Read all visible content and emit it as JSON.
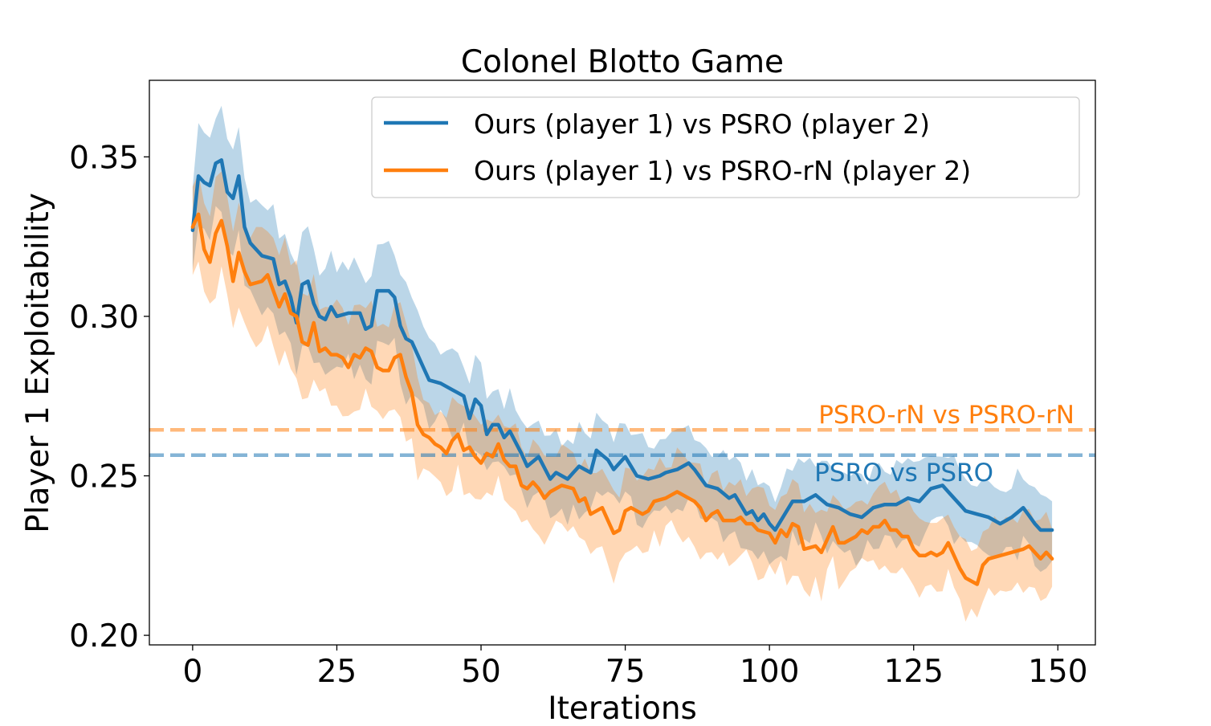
{
  "chart_data": {
    "type": "line",
    "title": "Colonel Blotto Game",
    "xlabel": "Iterations",
    "ylabel": "Player 1 Exploitability",
    "xlim": [
      -7.5,
      156.5
    ],
    "ylim": [
      0.197,
      0.374
    ],
    "x_ticks": [
      0,
      25,
      50,
      75,
      100,
      125,
      150
    ],
    "y_ticks": [
      0.2,
      0.25,
      0.3,
      0.35
    ],
    "x_tick_labels": [
      "0",
      "25",
      "50",
      "75",
      "100",
      "125",
      "150"
    ],
    "y_tick_labels": [
      "0.20",
      "0.25",
      "0.30",
      "0.35"
    ],
    "grid": false,
    "legend": {
      "placement": "upper-right",
      "entries": [
        "Ours (player 1) vs PSRO (player 2)",
        "Ours (player 1) vs PSRO-rN (player 2)"
      ]
    },
    "series": [
      {
        "name": "Ours (player 1) vs PSRO (player 2)",
        "color": "#1f77b4",
        "keypoints": [
          [
            0,
            0.327
          ],
          [
            1,
            0.344
          ],
          [
            2,
            0.342
          ],
          [
            3,
            0.341
          ],
          [
            4,
            0.348
          ],
          [
            5,
            0.349
          ],
          [
            6,
            0.339
          ],
          [
            7,
            0.337
          ],
          [
            8,
            0.344
          ],
          [
            9,
            0.328
          ],
          [
            10,
            0.323
          ],
          [
            12,
            0.319
          ],
          [
            14,
            0.318
          ],
          [
            15,
            0.31
          ],
          [
            16,
            0.311
          ],
          [
            17,
            0.306
          ],
          [
            18,
            0.298
          ],
          [
            19,
            0.31
          ],
          [
            20,
            0.311
          ],
          [
            21,
            0.304
          ],
          [
            22,
            0.3
          ],
          [
            23,
            0.299
          ],
          [
            24,
            0.303
          ],
          [
            25,
            0.3
          ],
          [
            27,
            0.301
          ],
          [
            29,
            0.301
          ],
          [
            30,
            0.296
          ],
          [
            31,
            0.297
          ],
          [
            32,
            0.308
          ],
          [
            34,
            0.308
          ],
          [
            35,
            0.306
          ],
          [
            36,
            0.297
          ],
          [
            37,
            0.293
          ],
          [
            38,
            0.292
          ],
          [
            40,
            0.284
          ],
          [
            41,
            0.28
          ],
          [
            43,
            0.279
          ],
          [
            45,
            0.277
          ],
          [
            47,
            0.275
          ],
          [
            48,
            0.268
          ],
          [
            49,
            0.274
          ],
          [
            50,
            0.272
          ],
          [
            51,
            0.263
          ],
          [
            52,
            0.266
          ],
          [
            53,
            0.266
          ],
          [
            54,
            0.262
          ],
          [
            55,
            0.264
          ],
          [
            57,
            0.257
          ],
          [
            58,
            0.253
          ],
          [
            60,
            0.256
          ],
          [
            62,
            0.249
          ],
          [
            63,
            0.251
          ],
          [
            65,
            0.249
          ],
          [
            67,
            0.253
          ],
          [
            69,
            0.251
          ],
          [
            70,
            0.258
          ],
          [
            72,
            0.255
          ],
          [
            73,
            0.252
          ],
          [
            75,
            0.256
          ],
          [
            77,
            0.25
          ],
          [
            79,
            0.249
          ],
          [
            81,
            0.25
          ],
          [
            82,
            0.251
          ],
          [
            84,
            0.252
          ],
          [
            86,
            0.254
          ],
          [
            87,
            0.252
          ],
          [
            89,
            0.247
          ],
          [
            91,
            0.246
          ],
          [
            93,
            0.243
          ],
          [
            94,
            0.244
          ],
          [
            96,
            0.238
          ],
          [
            97,
            0.239
          ],
          [
            98,
            0.236
          ],
          [
            99,
            0.238
          ],
          [
            100,
            0.235
          ],
          [
            101,
            0.233
          ],
          [
            102,
            0.236
          ],
          [
            104,
            0.242
          ],
          [
            106,
            0.242
          ],
          [
            108,
            0.244
          ],
          [
            110,
            0.241
          ],
          [
            112,
            0.24
          ],
          [
            114,
            0.238
          ],
          [
            116,
            0.237
          ],
          [
            118,
            0.24
          ],
          [
            120,
            0.241
          ],
          [
            122,
            0.241
          ],
          [
            124,
            0.243
          ],
          [
            126,
            0.242
          ],
          [
            128,
            0.246
          ],
          [
            130,
            0.247
          ],
          [
            132,
            0.243
          ],
          [
            134,
            0.239
          ],
          [
            136,
            0.238
          ],
          [
            138,
            0.237
          ],
          [
            140,
            0.235
          ],
          [
            142,
            0.237
          ],
          [
            144,
            0.24
          ],
          [
            146,
            0.235
          ],
          [
            147,
            0.233
          ],
          [
            149,
            0.233
          ]
        ]
      },
      {
        "name": "Ours (player 1) vs PSRO-rN (player 2)",
        "color": "#ff7f0e",
        "keypoints": [
          [
            0,
            0.328
          ],
          [
            1,
            0.332
          ],
          [
            2,
            0.321
          ],
          [
            3,
            0.317
          ],
          [
            4,
            0.326
          ],
          [
            5,
            0.33
          ],
          [
            6,
            0.322
          ],
          [
            7,
            0.311
          ],
          [
            8,
            0.32
          ],
          [
            9,
            0.314
          ],
          [
            10,
            0.31
          ],
          [
            12,
            0.311
          ],
          [
            13,
            0.313
          ],
          [
            14,
            0.308
          ],
          [
            15,
            0.303
          ],
          [
            16,
            0.307
          ],
          [
            17,
            0.301
          ],
          [
            18,
            0.3
          ],
          [
            19,
            0.292
          ],
          [
            20,
            0.291
          ],
          [
            21,
            0.298
          ],
          [
            22,
            0.289
          ],
          [
            23,
            0.29
          ],
          [
            24,
            0.288
          ],
          [
            25,
            0.288
          ],
          [
            26,
            0.287
          ],
          [
            27,
            0.284
          ],
          [
            28,
            0.288
          ],
          [
            29,
            0.287
          ],
          [
            30,
            0.29
          ],
          [
            31,
            0.289
          ],
          [
            32,
            0.284
          ],
          [
            33,
            0.283
          ],
          [
            34,
            0.283
          ],
          [
            35,
            0.287
          ],
          [
            36,
            0.288
          ],
          [
            37,
            0.281
          ],
          [
            38,
            0.276
          ],
          [
            39,
            0.266
          ],
          [
            40,
            0.263
          ],
          [
            41,
            0.262
          ],
          [
            42,
            0.26
          ],
          [
            43,
            0.259
          ],
          [
            44,
            0.257
          ],
          [
            45,
            0.261
          ],
          [
            46,
            0.263
          ],
          [
            47,
            0.258
          ],
          [
            48,
            0.259
          ],
          [
            49,
            0.256
          ],
          [
            50,
            0.254
          ],
          [
            51,
            0.257
          ],
          [
            52,
            0.256
          ],
          [
            53,
            0.26
          ],
          [
            54,
            0.255
          ],
          [
            55,
            0.253
          ],
          [
            56,
            0.253
          ],
          [
            57,
            0.247
          ],
          [
            58,
            0.246
          ],
          [
            59,
            0.248
          ],
          [
            60,
            0.246
          ],
          [
            61,
            0.243
          ],
          [
            62,
            0.245
          ],
          [
            64,
            0.247
          ],
          [
            66,
            0.246
          ],
          [
            67,
            0.242
          ],
          [
            68,
            0.243
          ],
          [
            69,
            0.238
          ],
          [
            70,
            0.239
          ],
          [
            71,
            0.24
          ],
          [
            72,
            0.236
          ],
          [
            73,
            0.232
          ],
          [
            74,
            0.233
          ],
          [
            75,
            0.239
          ],
          [
            76,
            0.24
          ],
          [
            77,
            0.239
          ],
          [
            78,
            0.238
          ],
          [
            79,
            0.239
          ],
          [
            80,
            0.242
          ],
          [
            82,
            0.243
          ],
          [
            84,
            0.245
          ],
          [
            85,
            0.244
          ],
          [
            86,
            0.243
          ],
          [
            87,
            0.242
          ],
          [
            88,
            0.24
          ],
          [
            89,
            0.236
          ],
          [
            90,
            0.238
          ],
          [
            91,
            0.239
          ],
          [
            92,
            0.236
          ],
          [
            94,
            0.236
          ],
          [
            95,
            0.237
          ],
          [
            96,
            0.235
          ],
          [
            97,
            0.235
          ],
          [
            98,
            0.233
          ],
          [
            100,
            0.232
          ],
          [
            101,
            0.229
          ],
          [
            102,
            0.233
          ],
          [
            103,
            0.231
          ],
          [
            104,
            0.235
          ],
          [
            105,
            0.234
          ],
          [
            106,
            0.227
          ],
          [
            108,
            0.228
          ],
          [
            109,
            0.226
          ],
          [
            110,
            0.23
          ],
          [
            111,
            0.234
          ],
          [
            112,
            0.229
          ],
          [
            113,
            0.229
          ],
          [
            115,
            0.231
          ],
          [
            116,
            0.233
          ],
          [
            117,
            0.232
          ],
          [
            118,
            0.234
          ],
          [
            119,
            0.234
          ],
          [
            120,
            0.236
          ],
          [
            121,
            0.233
          ],
          [
            122,
            0.233
          ],
          [
            123,
            0.231
          ],
          [
            124,
            0.231
          ],
          [
            125,
            0.227
          ],
          [
            126,
            0.225
          ],
          [
            127,
            0.225
          ],
          [
            128,
            0.226
          ],
          [
            129,
            0.225
          ],
          [
            130,
            0.226
          ],
          [
            131,
            0.229
          ],
          [
            132,
            0.225
          ],
          [
            133,
            0.221
          ],
          [
            134,
            0.218
          ],
          [
            135,
            0.217
          ],
          [
            136,
            0.216
          ],
          [
            137,
            0.222
          ],
          [
            138,
            0.224
          ],
          [
            140,
            0.225
          ],
          [
            142,
            0.226
          ],
          [
            144,
            0.227
          ],
          [
            145,
            0.228
          ],
          [
            146,
            0.226
          ],
          [
            147,
            0.224
          ],
          [
            148,
            0.226
          ],
          [
            149,
            0.224
          ]
        ]
      }
    ],
    "reference_lines": [
      {
        "label": "PSRO-rN vs PSRO-rN",
        "y": 0.2644,
        "color": "#ff7f0e",
        "style": "dashed"
      },
      {
        "label": "PSRO vs PSRO",
        "y": 0.2565,
        "color": "#1f77b4",
        "style": "dashed"
      }
    ]
  }
}
